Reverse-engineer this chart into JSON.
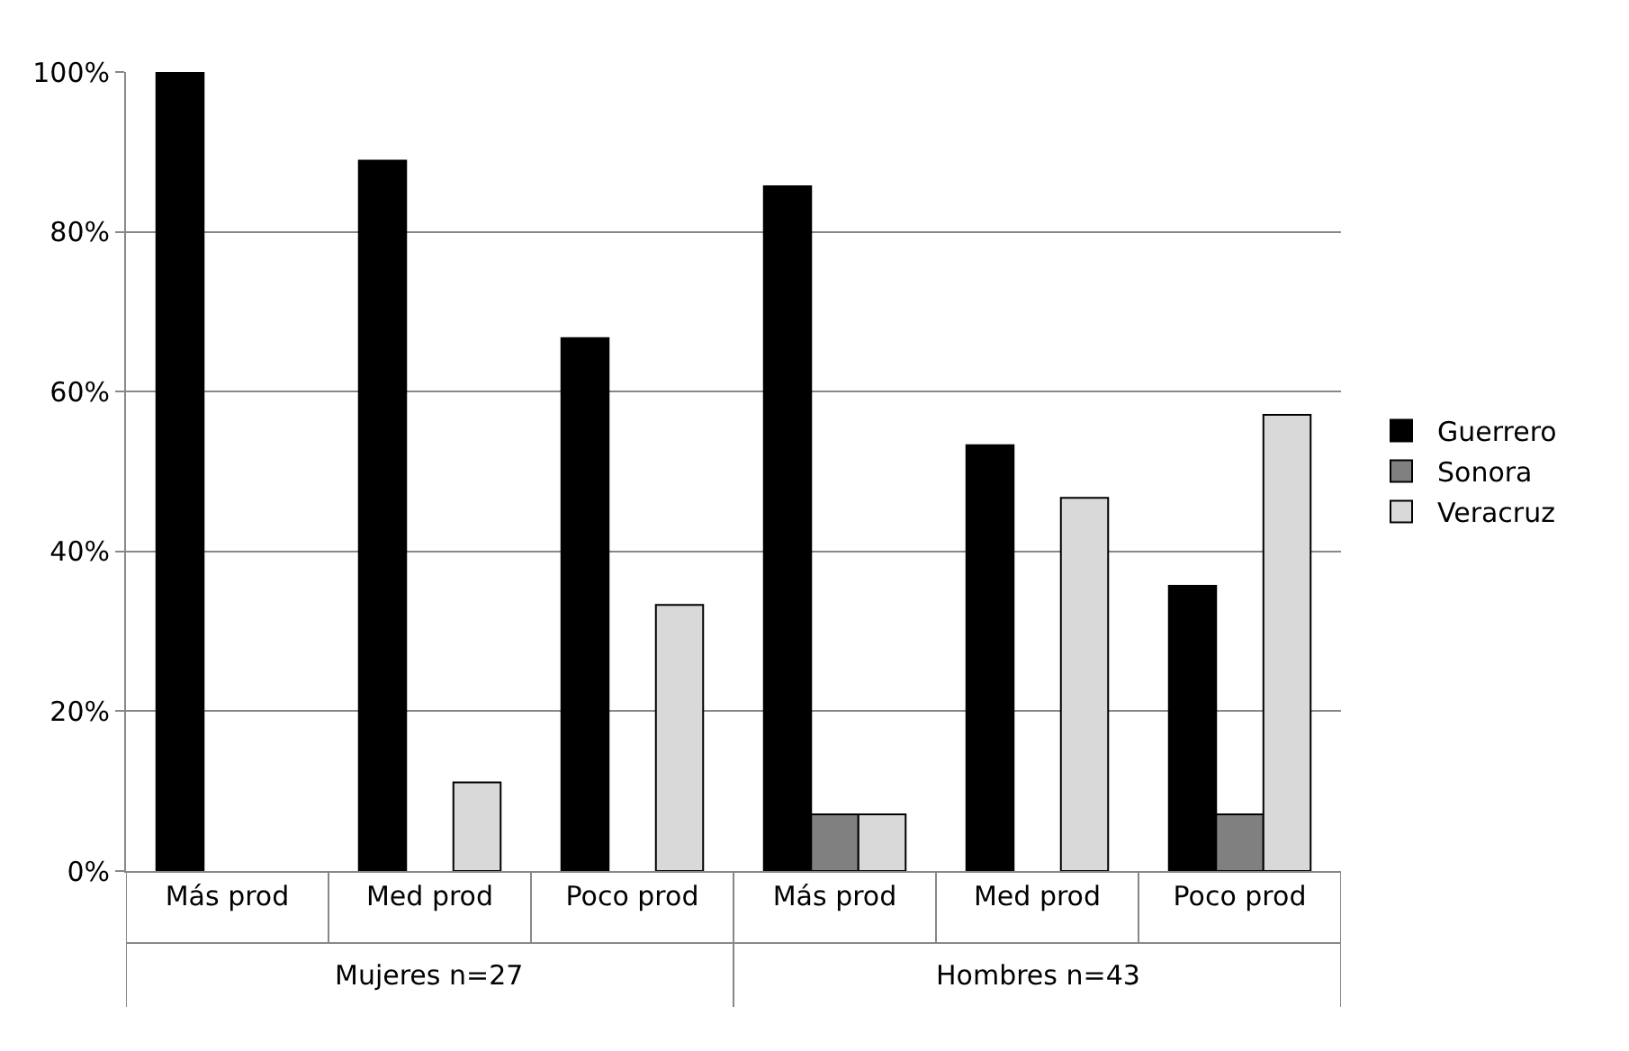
{
  "chart_data": {
    "type": "bar",
    "categories": [
      "Más prod",
      "Med prod",
      "Poco prod",
      "Más prod",
      "Med prod",
      "Poco prod"
    ],
    "series": [
      {
        "name": "Guerrero",
        "color": "#000000",
        "values": [
          100,
          88.9,
          66.7,
          85.7,
          53.3,
          35.7
        ]
      },
      {
        "name": "Sonora",
        "color": "#808080",
        "values": [
          null,
          null,
          null,
          7.1,
          null,
          7.1
        ]
      },
      {
        "name": "Veracruz",
        "color": "#d9d9d9",
        "values": [
          null,
          11.1,
          33.3,
          7.1,
          46.7,
          57.1
        ]
      }
    ],
    "annotations": [
      "Mujeres n=27",
      "Hombres n=43"
    ],
    "ylim": [
      0,
      100
    ],
    "yticks": [
      {
        "value": 0,
        "label": "0%"
      },
      {
        "value": 20,
        "label": "20%"
      },
      {
        "value": 40,
        "label": "40%"
      },
      {
        "value": 60,
        "label": "60%"
      },
      {
        "value": 80,
        "label": "80%"
      },
      {
        "value": 100,
        "label": "100%"
      }
    ],
    "grid": "y",
    "legend": "right"
  }
}
